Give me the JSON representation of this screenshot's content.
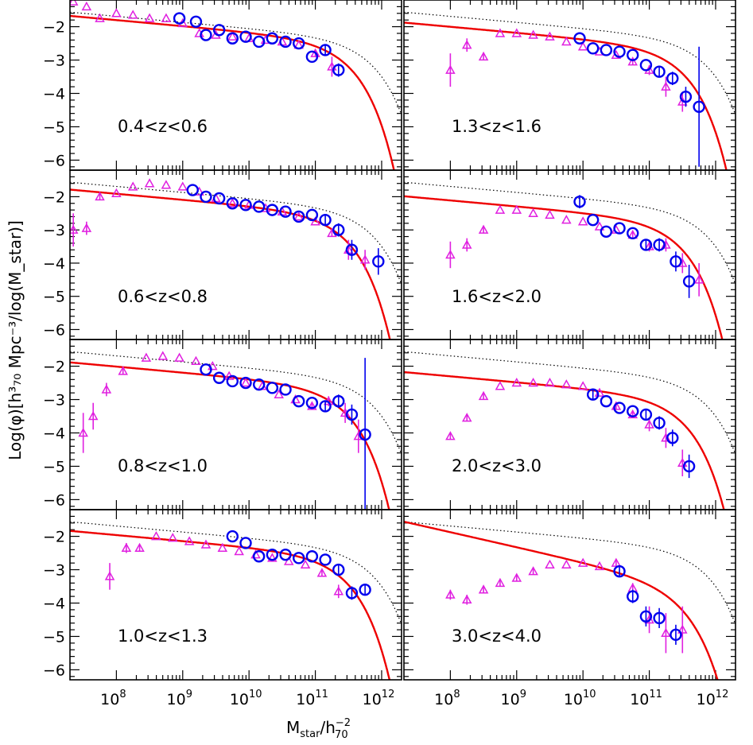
{
  "chart_data": {
    "type": "scatter",
    "x_scale": "log",
    "xlim_log10": [
      7.3,
      12.3
    ],
    "ylim": [
      -6.3,
      -1.2
    ],
    "xticks": [
      {
        "value": 8,
        "label": "10",
        "exp": "8"
      },
      {
        "value": 9,
        "label": "10",
        "exp": "9"
      },
      {
        "value": 10,
        "label": "10",
        "exp": "10"
      },
      {
        "value": 11,
        "label": "10",
        "exp": "11"
      },
      {
        "value": 12,
        "label": "10",
        "exp": "12"
      }
    ],
    "yticks": [
      -2,
      -3,
      -4,
      -5,
      -6
    ],
    "xlabel": {
      "main": "M",
      "sub": "star",
      "mid": "/h",
      "sup2": "−2",
      "sub2": "70"
    },
    "ylabel": "Log(φ)[h³₇₀ Mpc⁻³/log(M_star)]",
    "colors": {
      "triangles": "#e020e0",
      "circles": "#0000ee",
      "fit": "#ee0000",
      "reference": "#000000"
    },
    "panels": [
      {
        "label": "0.4<z<0.6",
        "schechter": {
          "phi_star": -2.75,
          "m_star": 11.25,
          "alpha": -1.18
        },
        "triangles": [
          [
            7.35,
            -1.25,
            0.05
          ],
          [
            7.55,
            -1.4,
            0.05
          ],
          [
            7.75,
            -1.75,
            0.05
          ],
          [
            8.0,
            -1.6,
            0.05
          ],
          [
            8.25,
            -1.65,
            0.05
          ],
          [
            8.5,
            -1.75,
            0.05
          ],
          [
            8.75,
            -1.75,
            0.05
          ],
          [
            9.0,
            -1.9,
            0.05
          ],
          [
            9.25,
            -2.2,
            0.05
          ],
          [
            9.5,
            -2.25,
            0.05
          ],
          [
            9.75,
            -2.3,
            0.05
          ],
          [
            10.0,
            -2.35,
            0.05
          ],
          [
            10.25,
            -2.4,
            0.05
          ],
          [
            10.5,
            -2.45,
            0.05
          ],
          [
            10.75,
            -2.55,
            0.05
          ],
          [
            11.0,
            -2.8,
            0.1
          ],
          [
            11.25,
            -3.2,
            0.3
          ]
        ],
        "circles": [
          [
            8.95,
            -1.75,
            0.1
          ],
          [
            9.2,
            -1.85,
            0.1
          ],
          [
            9.35,
            -2.25,
            0.1
          ],
          [
            9.55,
            -2.1,
            0.1
          ],
          [
            9.75,
            -2.35,
            0.1
          ],
          [
            9.95,
            -2.3,
            0.1
          ],
          [
            10.15,
            -2.45,
            0.1
          ],
          [
            10.35,
            -2.35,
            0.1
          ],
          [
            10.55,
            -2.45,
            0.1
          ],
          [
            10.75,
            -2.5,
            0.1
          ],
          [
            10.95,
            -2.9,
            0.1
          ],
          [
            11.15,
            -2.7,
            0.15
          ],
          [
            11.35,
            -3.3,
            0.2
          ]
        ]
      },
      {
        "label": "1.3<z<1.6",
        "schechter": {
          "phi_star": -2.95,
          "m_star": 11.25,
          "alpha": -1.18
        },
        "triangles": [
          [
            8.0,
            -3.3,
            0.5
          ],
          [
            8.25,
            -2.55,
            0.2
          ],
          [
            8.5,
            -2.9,
            0.1
          ],
          [
            8.75,
            -2.2,
            0.05
          ],
          [
            9.0,
            -2.2,
            0.05
          ],
          [
            9.25,
            -2.25,
            0.05
          ],
          [
            9.5,
            -2.3,
            0.05
          ],
          [
            9.75,
            -2.45,
            0.05
          ],
          [
            10.0,
            -2.6,
            0.05
          ],
          [
            10.25,
            -2.75,
            0.05
          ],
          [
            10.5,
            -2.85,
            0.05
          ],
          [
            10.75,
            -3.05,
            0.1
          ],
          [
            11.0,
            -3.3,
            0.15
          ],
          [
            11.25,
            -3.8,
            0.3
          ],
          [
            11.5,
            -4.25,
            0.3
          ]
        ],
        "circles": [
          [
            9.95,
            -2.35,
            0.1
          ],
          [
            10.15,
            -2.65,
            0.1
          ],
          [
            10.35,
            -2.7,
            0.1
          ],
          [
            10.55,
            -2.75,
            0.1
          ],
          [
            10.75,
            -2.85,
            0.1
          ],
          [
            10.95,
            -3.15,
            0.1
          ],
          [
            11.15,
            -3.35,
            0.15
          ],
          [
            11.35,
            -3.55,
            0.2
          ],
          [
            11.55,
            -4.1,
            0.3
          ],
          [
            11.75,
            -4.4,
            1.8
          ]
        ]
      },
      {
        "label": "0.6<z<0.8",
        "schechter": {
          "phi_star": -2.85,
          "m_star": 11.2,
          "alpha": -1.18
        },
        "triangles": [
          [
            7.35,
            -3.0,
            0.5
          ],
          [
            7.55,
            -2.95,
            0.2
          ],
          [
            7.75,
            -2.0,
            0.1
          ],
          [
            8.0,
            -1.9,
            0.05
          ],
          [
            8.25,
            -1.7,
            0.05
          ],
          [
            8.5,
            -1.6,
            0.05
          ],
          [
            8.75,
            -1.65,
            0.05
          ],
          [
            9.0,
            -1.7,
            0.05
          ],
          [
            9.25,
            -1.85,
            0.05
          ],
          [
            9.5,
            -2.05,
            0.05
          ],
          [
            9.75,
            -2.2,
            0.05
          ],
          [
            10.0,
            -2.25,
            0.05
          ],
          [
            10.25,
            -2.35,
            0.05
          ],
          [
            10.5,
            -2.45,
            0.05
          ],
          [
            10.75,
            -2.6,
            0.05
          ],
          [
            11.0,
            -2.75,
            0.05
          ],
          [
            11.25,
            -3.1,
            0.1
          ],
          [
            11.5,
            -3.6,
            0.3
          ],
          [
            11.75,
            -3.9,
            0.3
          ]
        ],
        "circles": [
          [
            9.15,
            -1.8,
            0.1
          ],
          [
            9.35,
            -2.0,
            0.1
          ],
          [
            9.55,
            -2.05,
            0.1
          ],
          [
            9.75,
            -2.2,
            0.1
          ],
          [
            9.95,
            -2.25,
            0.1
          ],
          [
            10.15,
            -2.3,
            0.1
          ],
          [
            10.35,
            -2.4,
            0.1
          ],
          [
            10.55,
            -2.45,
            0.1
          ],
          [
            10.75,
            -2.6,
            0.1
          ],
          [
            10.95,
            -2.55,
            0.1
          ],
          [
            11.15,
            -2.7,
            0.15
          ],
          [
            11.35,
            -3.0,
            0.2
          ],
          [
            11.55,
            -3.6,
            0.3
          ],
          [
            11.95,
            -3.95,
            0.4
          ]
        ]
      },
      {
        "label": "1.6<z<2.0",
        "schechter": {
          "phi_star": -3.05,
          "m_star": 11.2,
          "alpha": -1.18
        },
        "triangles": [
          [
            8.0,
            -3.75,
            0.4
          ],
          [
            8.25,
            -3.45,
            0.2
          ],
          [
            8.5,
            -3.0,
            0.1
          ],
          [
            8.75,
            -2.4,
            0.05
          ],
          [
            9.0,
            -2.4,
            0.05
          ],
          [
            9.25,
            -2.5,
            0.05
          ],
          [
            9.5,
            -2.55,
            0.05
          ],
          [
            9.75,
            -2.7,
            0.05
          ],
          [
            10.0,
            -2.75,
            0.05
          ],
          [
            10.25,
            -2.9,
            0.05
          ],
          [
            10.5,
            -3.0,
            0.05
          ],
          [
            10.75,
            -3.15,
            0.1
          ],
          [
            11.0,
            -3.5,
            0.15
          ],
          [
            11.25,
            -3.45,
            0.2
          ],
          [
            11.5,
            -4.0,
            0.3
          ],
          [
            11.75,
            -4.5,
            0.5
          ]
        ],
        "circles": [
          [
            9.95,
            -2.15,
            0.2
          ],
          [
            10.15,
            -2.7,
            0.1
          ],
          [
            10.35,
            -3.05,
            0.1
          ],
          [
            10.55,
            -2.95,
            0.1
          ],
          [
            10.75,
            -3.1,
            0.1
          ],
          [
            10.95,
            -3.45,
            0.15
          ],
          [
            11.15,
            -3.45,
            0.2
          ],
          [
            11.4,
            -3.95,
            0.3
          ],
          [
            11.6,
            -4.55,
            0.5
          ]
        ]
      },
      {
        "label": "0.8<z<1.0",
        "schechter": {
          "phi_star": -2.95,
          "m_star": 11.2,
          "alpha": -1.18
        },
        "triangles": [
          [
            7.5,
            -4.0,
            0.6
          ],
          [
            7.65,
            -3.5,
            0.4
          ],
          [
            7.85,
            -2.7,
            0.2
          ],
          [
            8.1,
            -2.15,
            0.1
          ],
          [
            8.45,
            -1.75,
            0.05
          ],
          [
            8.7,
            -1.7,
            0.05
          ],
          [
            8.95,
            -1.75,
            0.05
          ],
          [
            9.2,
            -1.85,
            0.05
          ],
          [
            9.45,
            -2.0,
            0.05
          ],
          [
            9.7,
            -2.3,
            0.05
          ],
          [
            9.95,
            -2.5,
            0.05
          ],
          [
            10.2,
            -2.6,
            0.05
          ],
          [
            10.45,
            -2.85,
            0.05
          ],
          [
            10.7,
            -3.0,
            0.05
          ],
          [
            10.95,
            -3.2,
            0.1
          ],
          [
            11.2,
            -3.05,
            0.15
          ],
          [
            11.45,
            -3.4,
            0.3
          ],
          [
            11.65,
            -4.1,
            0.5
          ]
        ],
        "circles": [
          [
            9.35,
            -2.1,
            0.1
          ],
          [
            9.55,
            -2.35,
            0.1
          ],
          [
            9.75,
            -2.45,
            0.1
          ],
          [
            9.95,
            -2.5,
            0.1
          ],
          [
            10.15,
            -2.55,
            0.1
          ],
          [
            10.35,
            -2.65,
            0.1
          ],
          [
            10.55,
            -2.7,
            0.1
          ],
          [
            10.75,
            -3.05,
            0.1
          ],
          [
            10.95,
            -3.1,
            0.1
          ],
          [
            11.15,
            -3.2,
            0.15
          ],
          [
            11.35,
            -3.05,
            0.2
          ],
          [
            11.55,
            -3.45,
            0.3
          ],
          [
            11.75,
            -4.05,
            2.3
          ]
        ]
      },
      {
        "label": "2.0<z<3.0",
        "schechter": {
          "phi_star": -3.25,
          "m_star": 11.25,
          "alpha": -1.18
        },
        "triangles": [
          [
            8.0,
            -4.1,
            0.1
          ],
          [
            8.25,
            -3.55,
            0.1
          ],
          [
            8.5,
            -2.9,
            0.1
          ],
          [
            8.75,
            -2.6,
            0.05
          ],
          [
            9.0,
            -2.5,
            0.05
          ],
          [
            9.25,
            -2.5,
            0.05
          ],
          [
            9.5,
            -2.5,
            0.05
          ],
          [
            9.75,
            -2.55,
            0.05
          ],
          [
            10.0,
            -2.6,
            0.05
          ],
          [
            10.25,
            -2.8,
            0.05
          ],
          [
            10.5,
            -3.2,
            0.1
          ],
          [
            10.75,
            -3.45,
            0.1
          ],
          [
            11.0,
            -3.75,
            0.2
          ],
          [
            11.25,
            -4.15,
            0.3
          ],
          [
            11.5,
            -4.9,
            0.4
          ]
        ],
        "circles": [
          [
            10.15,
            -2.85,
            0.15
          ],
          [
            10.35,
            -3.05,
            0.1
          ],
          [
            10.55,
            -3.25,
            0.1
          ],
          [
            10.75,
            -3.35,
            0.1
          ],
          [
            10.95,
            -3.45,
            0.15
          ],
          [
            11.15,
            -3.7,
            0.2
          ],
          [
            11.35,
            -4.15,
            0.25
          ],
          [
            11.6,
            -5.0,
            0.35
          ]
        ]
      },
      {
        "label": "1.0<z<1.3",
        "schechter": {
          "phi_star": -2.9,
          "m_star": 11.2,
          "alpha": -1.18
        },
        "triangles": [
          [
            7.9,
            -3.2,
            0.4
          ],
          [
            8.15,
            -2.35,
            0.15
          ],
          [
            8.35,
            -2.35,
            0.1
          ],
          [
            8.6,
            -2.0,
            0.05
          ],
          [
            8.85,
            -2.05,
            0.05
          ],
          [
            9.1,
            -2.15,
            0.05
          ],
          [
            9.35,
            -2.25,
            0.05
          ],
          [
            9.6,
            -2.35,
            0.05
          ],
          [
            9.85,
            -2.45,
            0.05
          ],
          [
            10.1,
            -2.55,
            0.05
          ],
          [
            10.35,
            -2.65,
            0.05
          ],
          [
            10.6,
            -2.75,
            0.05
          ],
          [
            10.85,
            -2.85,
            0.05
          ],
          [
            11.1,
            -3.1,
            0.1
          ],
          [
            11.35,
            -3.65,
            0.2
          ]
        ],
        "circles": [
          [
            9.75,
            -2.0,
            0.1
          ],
          [
            9.95,
            -2.2,
            0.1
          ],
          [
            10.15,
            -2.6,
            0.1
          ],
          [
            10.35,
            -2.55,
            0.1
          ],
          [
            10.55,
            -2.55,
            0.1
          ],
          [
            10.75,
            -2.65,
            0.1
          ],
          [
            10.95,
            -2.6,
            0.1
          ],
          [
            11.15,
            -2.7,
            0.1
          ],
          [
            11.35,
            -3.0,
            0.15
          ],
          [
            11.55,
            -3.7,
            0.2
          ],
          [
            11.75,
            -3.6,
            0.15
          ]
        ]
      },
      {
        "label": "3.0<z<4.0",
        "schechter": {
          "phi_star": -3.7,
          "m_star": 11.25,
          "alpha": -1.45
        },
        "triangles": [
          [
            8.0,
            -3.75,
            0.15
          ],
          [
            8.25,
            -3.9,
            0.15
          ],
          [
            8.5,
            -3.6,
            0.1
          ],
          [
            8.75,
            -3.4,
            0.1
          ],
          [
            9.0,
            -3.25,
            0.1
          ],
          [
            9.25,
            -3.05,
            0.1
          ],
          [
            9.5,
            -2.85,
            0.05
          ],
          [
            9.75,
            -2.85,
            0.05
          ],
          [
            10.0,
            -2.8,
            0.05
          ],
          [
            10.25,
            -2.9,
            0.05
          ],
          [
            10.5,
            -2.8,
            0.1
          ],
          [
            10.75,
            -3.55,
            0.15
          ],
          [
            11.0,
            -4.5,
            0.4
          ],
          [
            11.25,
            -4.9,
            0.6
          ],
          [
            11.5,
            -4.8,
            0.7
          ]
        ],
        "circles": [
          [
            10.55,
            -3.05,
            0.15
          ],
          [
            10.75,
            -3.8,
            0.2
          ],
          [
            10.95,
            -4.4,
            0.3
          ],
          [
            11.15,
            -4.45,
            0.3
          ],
          [
            11.4,
            -4.95,
            0.3
          ]
        ]
      }
    ],
    "reference_curve": {
      "phi_star": -2.7,
      "m_star": 11.6,
      "alpha": -1.18
    }
  }
}
